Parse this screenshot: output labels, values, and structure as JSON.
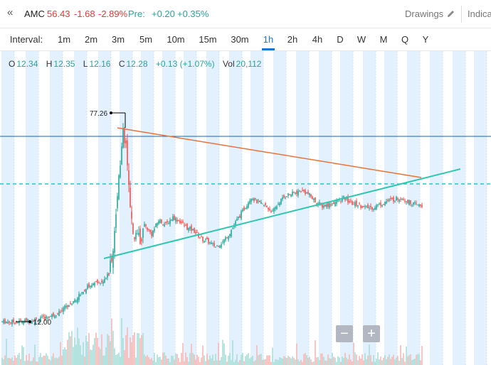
{
  "header": {
    "back_symbol": "«",
    "symbol": "AMC",
    "last": "56.43",
    "change": "-1.68",
    "change_pct": "-2.89%",
    "pre_label": "Pre:",
    "pre_change": "+0.20",
    "pre_change_pct": "+0.35%",
    "drawings_label": "Drawings",
    "indicators_label": "Indica"
  },
  "intervals": {
    "label": "Interval:",
    "items": [
      "1m",
      "2m",
      "3m",
      "5m",
      "10m",
      "15m",
      "30m",
      "1h",
      "2h",
      "4h",
      "D",
      "W",
      "M",
      "Q",
      "Y"
    ],
    "active": "1h"
  },
  "ohlc": {
    "o_label": "O",
    "o": "12.34",
    "h_label": "H",
    "h": "12.35",
    "l_label": "L",
    "l": "12.16",
    "c_label": "C",
    "c": "12.28",
    "change": "+0.13 (+1.07%)",
    "vol_label": "Vol",
    "vol": "20,112"
  },
  "chart_data": {
    "type": "line",
    "title": "",
    "xlabel": "",
    "ylabel": "",
    "x": [
      0,
      10,
      20,
      30,
      40,
      50,
      60,
      70,
      80,
      90,
      100,
      110,
      120,
      130,
      140,
      150,
      155,
      160,
      163,
      166,
      170,
      175,
      180,
      185,
      190,
      195,
      200,
      210,
      220,
      230,
      240,
      250,
      260,
      270,
      280,
      290,
      300,
      310,
      320,
      330,
      340,
      350,
      360,
      370,
      380,
      390,
      400,
      410,
      420,
      430,
      440,
      450,
      460,
      470,
      480,
      490,
      500,
      510,
      520,
      530,
      540,
      550,
      560,
      570,
      580,
      590
    ],
    "values": [
      12.0,
      12.0,
      11.9,
      12.1,
      12.4,
      12.7,
      13.2,
      14.0,
      15.1,
      16.8,
      18.5,
      20.8,
      23.2,
      24.1,
      25.0,
      27.5,
      33.0,
      45.0,
      58.0,
      63.5,
      74.0,
      66.0,
      48.0,
      37.0,
      41.0,
      38.0,
      43.0,
      40.0,
      44.5,
      43.0,
      45.5,
      44.0,
      42.0,
      41.0,
      38.5,
      37.5,
      36.0,
      37.5,
      40.5,
      44.5,
      48.0,
      52.0,
      50.0,
      49.0,
      47.0,
      50.5,
      52.5,
      53.0,
      54.0,
      53.0,
      50.5,
      49.0,
      49.5,
      50.5,
      51.5,
      50.0,
      49.5,
      48.5,
      48.5,
      49.5,
      50.5,
      51.0,
      51.8,
      50.5,
      49.5,
      49.0
    ],
    "markers": {
      "high": "77.26",
      "low": "12.00"
    },
    "trendlines": [
      {
        "color": "#e8733a"
      },
      {
        "color": "#2ec7b0"
      }
    ],
    "horizontal_lines": [
      {
        "style": "solid",
        "color": "#1565c0"
      },
      {
        "style": "dashed",
        "color": "#26c6da"
      }
    ],
    "grid": true
  },
  "zoom": {
    "out_label": "−",
    "in_label": "+"
  }
}
